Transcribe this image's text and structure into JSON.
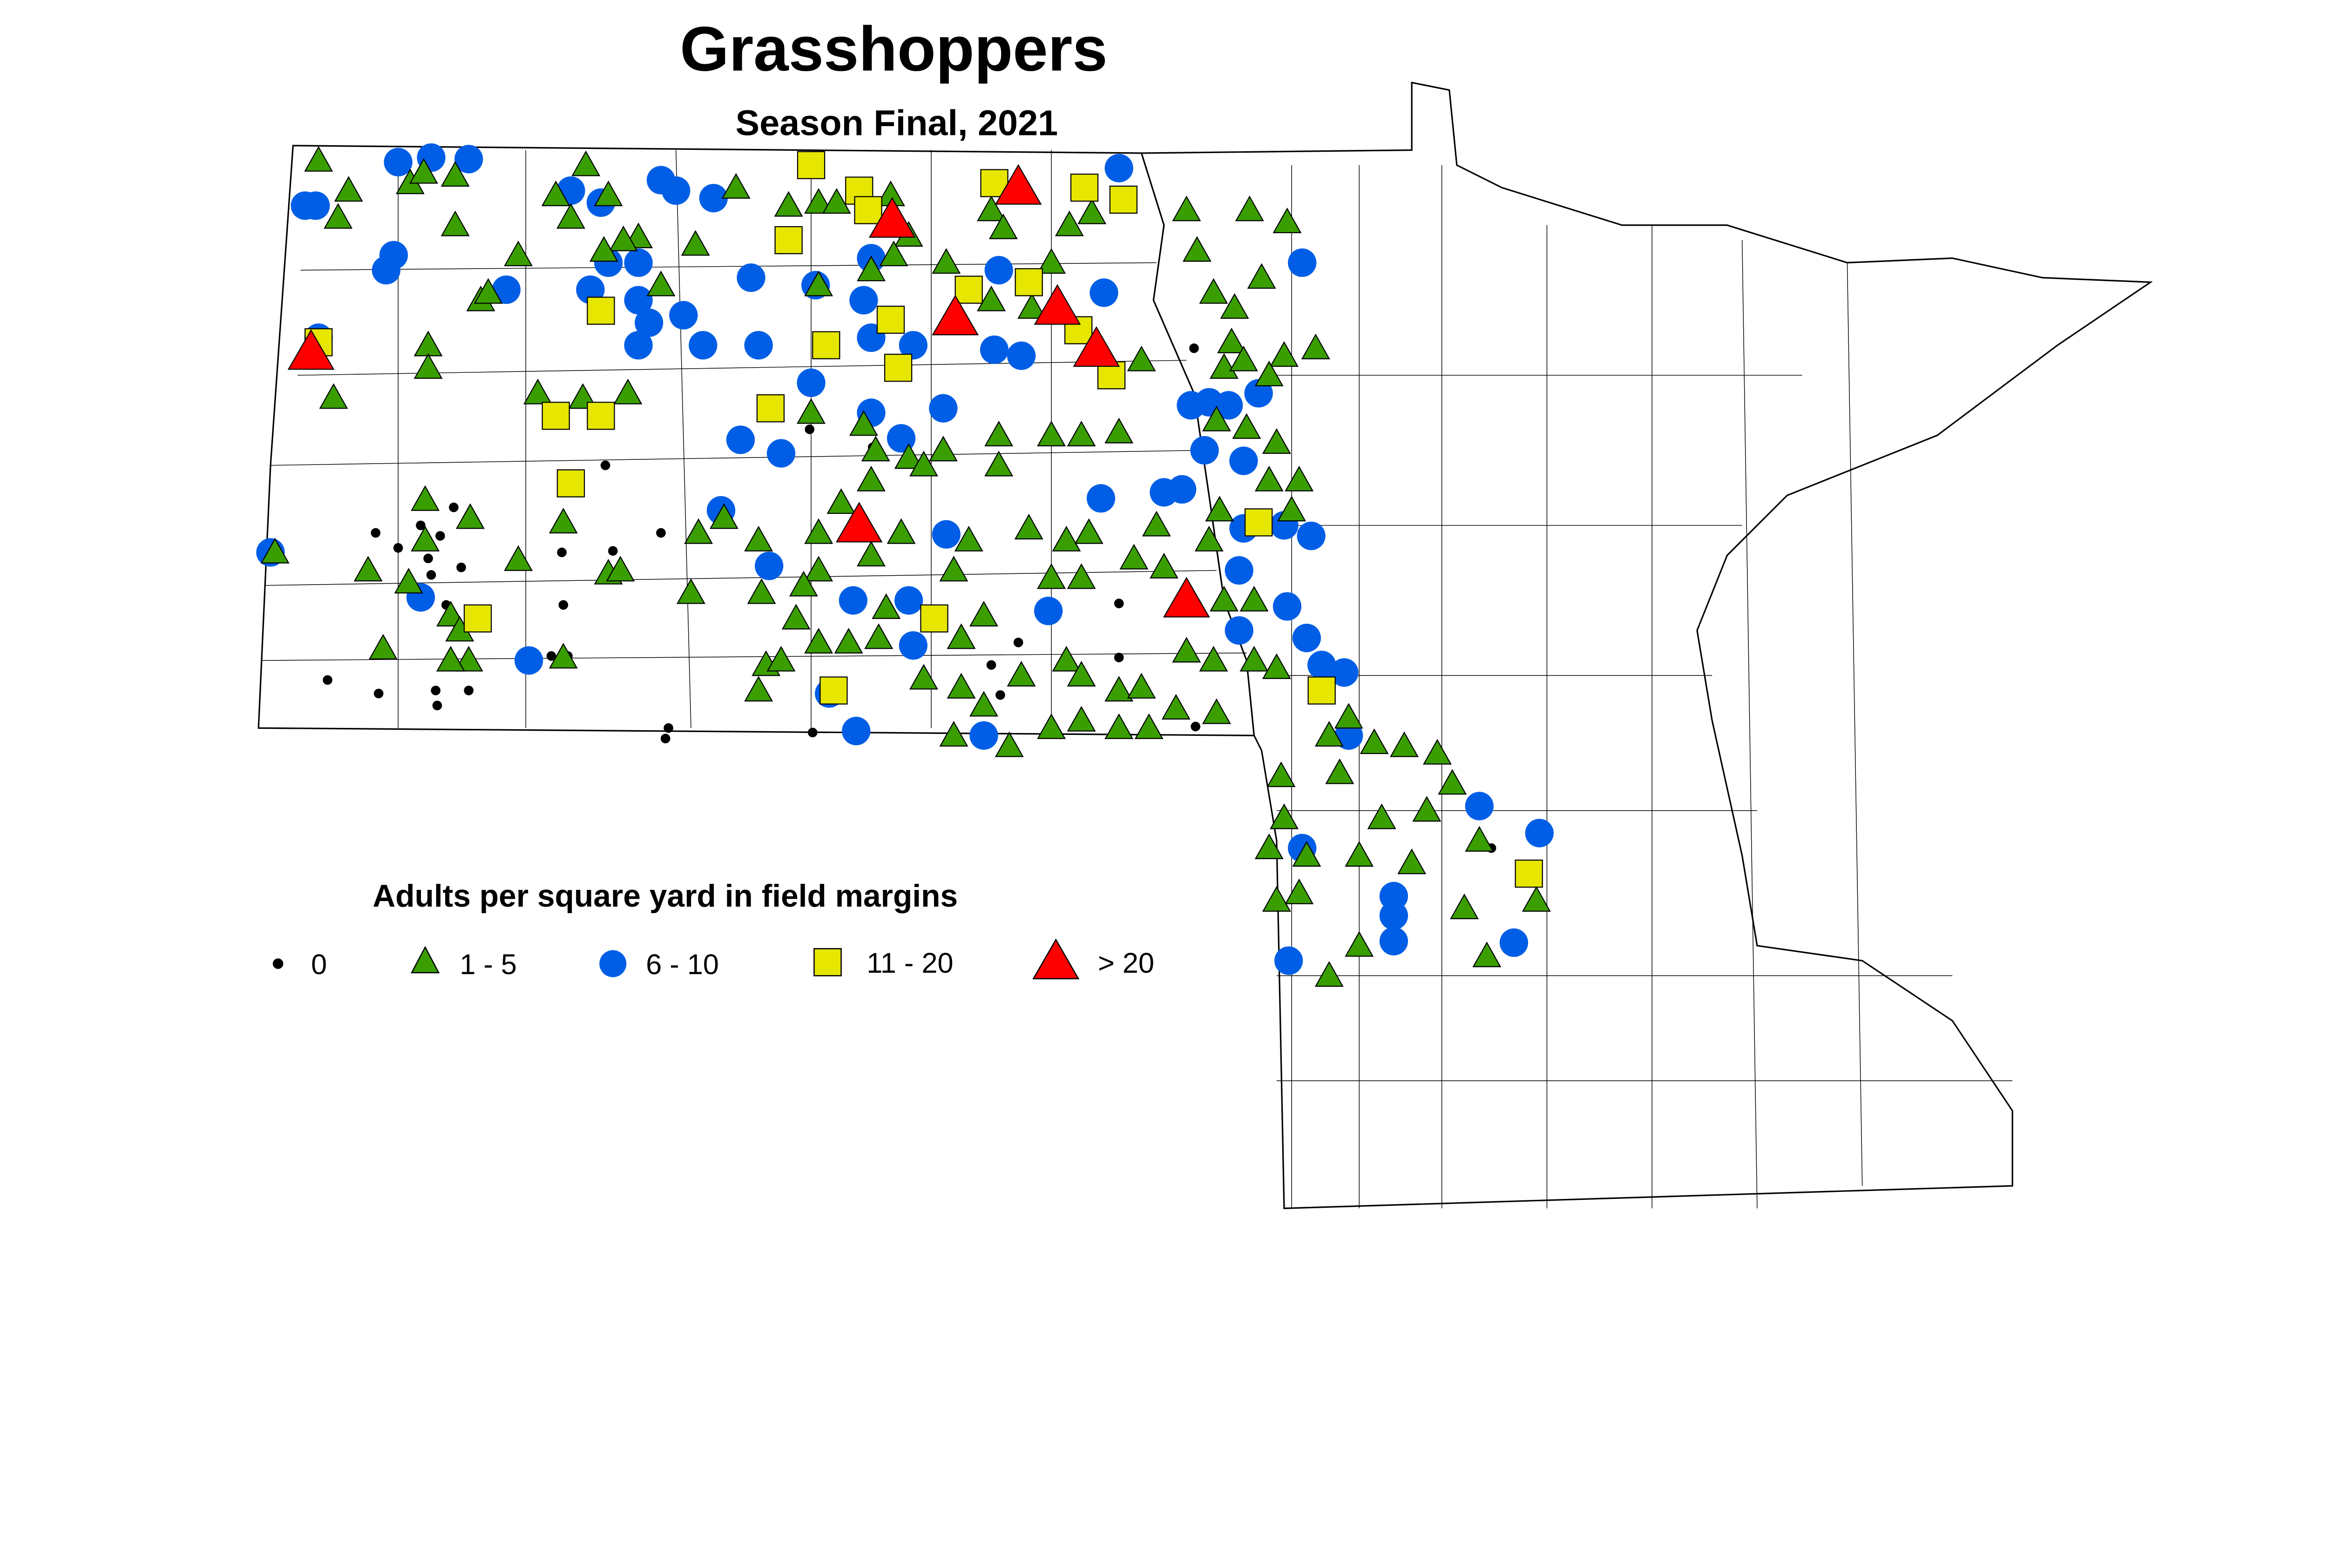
{
  "title": "Grasshoppers",
  "subtitle": "Season Final, 2021",
  "legend": {
    "title": "Adults per square yard in field margins",
    "items": [
      {
        "label": "0",
        "symbol": "dot",
        "color": "#000000"
      },
      {
        "label": "1 - 5",
        "symbol": "triangle",
        "color": "#3a9e00"
      },
      {
        "label": "6 - 10",
        "symbol": "circle",
        "color": "#005ee6"
      },
      {
        "label": "11 - 20",
        "symbol": "square",
        "color": "#e6e600"
      },
      {
        "label": "> 20",
        "symbol": "large-triangle",
        "color": "#ff0000"
      }
    ]
  }
}
